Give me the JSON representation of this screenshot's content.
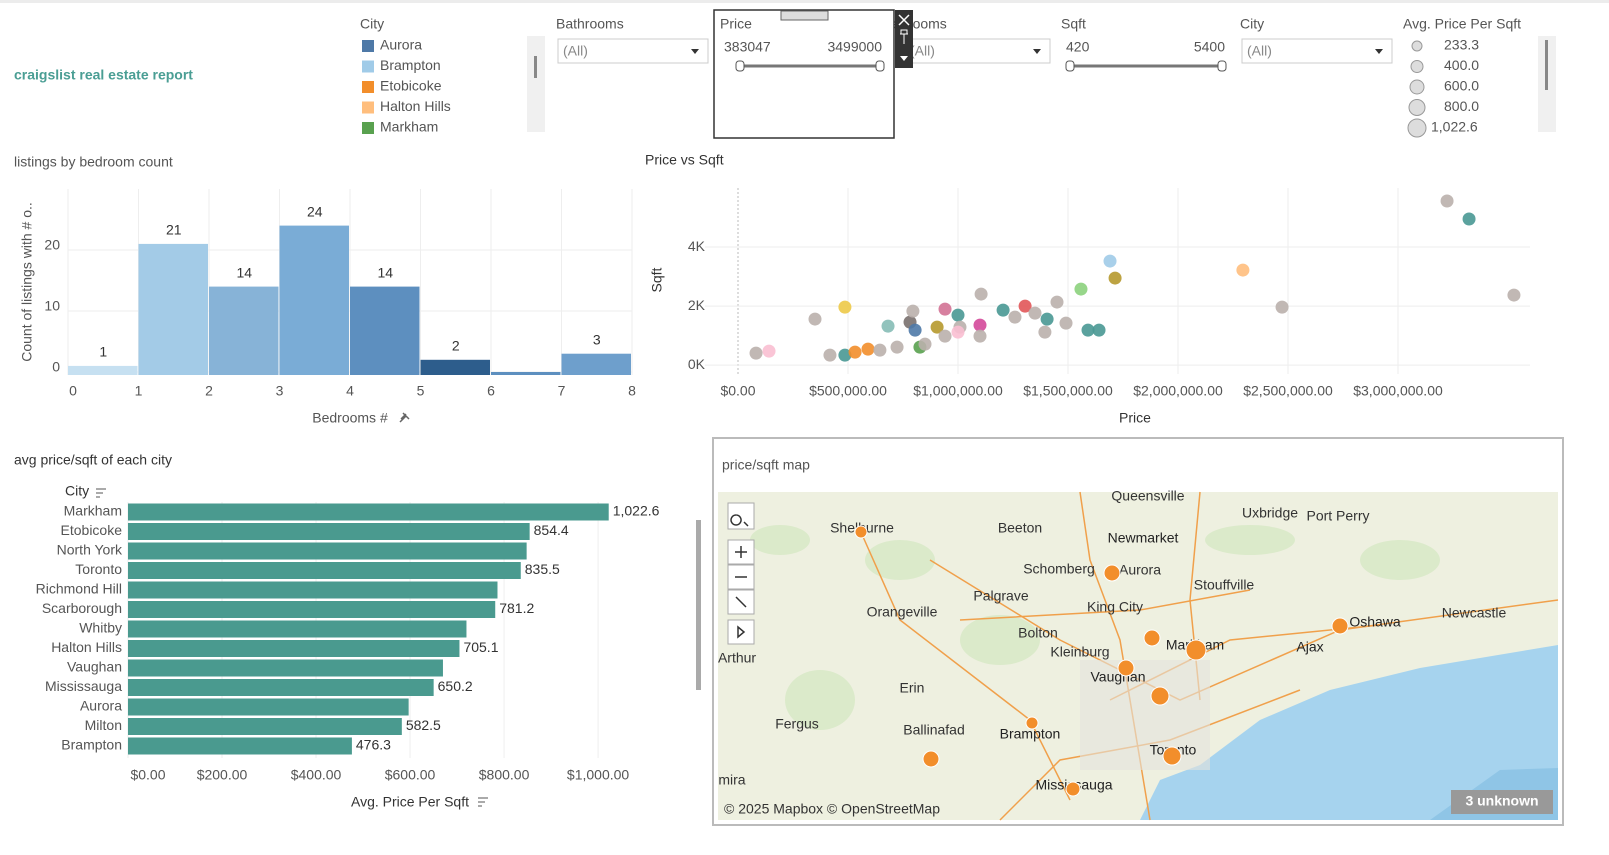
{
  "header": {
    "title": "craigslist real estate report"
  },
  "city_legend": {
    "title": "City",
    "items": [
      {
        "name": "Aurora",
        "color": "#4e79a7"
      },
      {
        "name": "Brampton",
        "color": "#a0cbe8"
      },
      {
        "name": "Etobicoke",
        "color": "#f28e2b"
      },
      {
        "name": "Halton Hills",
        "color": "#ffbe7d"
      },
      {
        "name": "Markham",
        "color": "#59a14f"
      }
    ]
  },
  "filters": {
    "bathrooms": {
      "label": "Bathrooms",
      "value": "(All)"
    },
    "price": {
      "label": "Price",
      "min": 383047,
      "max": 3499000
    },
    "bedrooms": {
      "label": "Bedrooms",
      "value": "(All)"
    },
    "sqft": {
      "label": "Sqft",
      "min": 420,
      "max": 5400
    },
    "city": {
      "label": "City",
      "value": "(All)"
    }
  },
  "size_legend": {
    "title": "Avg. Price Per Sqft",
    "items": [
      "233.3",
      "400.0",
      "600.0",
      "800.0",
      "1,022.6"
    ]
  },
  "chart_data": [
    {
      "type": "histogram",
      "title": "listings by bedroom count",
      "ylabel": "Count of listings with # o..",
      "xlabel": "Bedrooms #",
      "bins": [
        0,
        1,
        2,
        3,
        4,
        5,
        6,
        7,
        8
      ],
      "values": [
        1,
        21,
        14,
        24,
        14,
        2,
        0,
        3
      ],
      "colors": [
        "#c6e0f1",
        "#a3cbe7",
        "#87b3d7",
        "#7aacd6",
        "#5d8fbf",
        "#2d5d8c",
        "#5d8fbf",
        "#6e9fcc"
      ],
      "xlim": [
        0,
        8
      ],
      "ylim": [
        0,
        30
      ],
      "xticks": [
        0,
        1,
        2,
        3,
        4,
        5,
        6,
        7,
        8
      ],
      "yticks": [
        0,
        10,
        20
      ],
      "grid": true
    },
    {
      "type": "scatter",
      "title": "Price vs Sqft",
      "xlabel": "Price",
      "ylabel": "Sqft",
      "x": [
        82000,
        141000,
        350000,
        486000,
        418000,
        486000,
        532000,
        591000,
        645000,
        682000,
        723000,
        782000,
        795000,
        805000,
        827000,
        850000,
        905000,
        941000,
        941000,
        1000000,
        1009000,
        1000000,
        1100000,
        1105000,
        1100000,
        1205000,
        1259000,
        1305000,
        1350000,
        1405000,
        1395000,
        1450000,
        1491000,
        1559000,
        1591000,
        1641000,
        1691000,
        1714000,
        2295000,
        2473000,
        3223000,
        3323000,
        3527000
      ],
      "values": [
        407,
        475,
        1560,
        1966,
        339,
        339,
        441,
        542,
        508,
        1322,
        610,
        1458,
        1830,
        1186,
        610,
        712,
        1288,
        1898,
        983,
        1695,
        1288,
        1119,
        1356,
        2407,
        983,
        1864,
        1627,
        2000,
        1763,
        1559,
        1119,
        2136,
        1424,
        2576,
        1186,
        1186,
        3525,
        2949,
        3220,
        1966,
        5559,
        4949,
        2373
      ],
      "colors": [
        "#bab0ac",
        "#fabfd2",
        "#bab0ac",
        "#edc948",
        "#bab0ac",
        "#499894",
        "#f28e2b",
        "#f28e2b",
        "#bab0ac",
        "#86bcb6",
        "#bab0ac",
        "#79706e",
        "#bab0ac",
        "#4e79a7",
        "#59a14f",
        "#bab0ac",
        "#b6992d",
        "#d37295",
        "#bab0ac",
        "#499894",
        "#bab0ac",
        "#fabfd2",
        "#d4499a",
        "#bab0ac",
        "#bab0ac",
        "#499894",
        "#bab0ac",
        "#e15759",
        "#bab0ac",
        "#499894",
        "#bab0ac",
        "#bab0ac",
        "#bab0ac",
        "#8cd17d",
        "#499894",
        "#499894",
        "#a0cbe8",
        "#b6992d",
        "#ffbe7d",
        "#bab0ac",
        "#bab0ac",
        "#499894",
        "#bab0ac"
      ],
      "xlim": [
        -150000,
        3600000
      ],
      "ylim": [
        -300,
        6000
      ],
      "xticks": [
        {
          "value": 0,
          "label": "$0.00"
        },
        {
          "value": 500000,
          "label": "$500,000.00"
        },
        {
          "value": 1000000,
          "label": "$1,000,000.00"
        },
        {
          "value": 1500000,
          "label": "$1,500,000.00"
        },
        {
          "value": 2000000,
          "label": "$2,000,000.00"
        },
        {
          "value": 2500000,
          "label": "$2,500,000.00"
        },
        {
          "value": 3000000,
          "label": "$3,000,000.00"
        }
      ],
      "yticks": [
        {
          "value": 0,
          "label": "0K"
        },
        {
          "value": 2000,
          "label": "2K"
        },
        {
          "value": 4000,
          "label": "4K"
        }
      ],
      "grid": true
    },
    {
      "type": "bar",
      "orientation": "horizontal",
      "title": "avg price/sqft of each city",
      "category_header": "City",
      "xlabel": "Avg. Price Per Sqft",
      "color": "#4a9a8f",
      "categories": [
        "Markham",
        "Etobicoke",
        "North York",
        "Toronto",
        "Richmond Hill",
        "Scarborough",
        "Whitby",
        "Halton Hills",
        "Vaughan",
        "Mississauga",
        "Aurora",
        "Milton",
        "Brampton"
      ],
      "values": [
        1022.6,
        854.4,
        848,
        835.5,
        786,
        781.2,
        720,
        705.1,
        670,
        650.2,
        597,
        582.5,
        476.3
      ],
      "value_labels": [
        "1,022.6",
        "854.4",
        null,
        "835.5",
        null,
        "781.2",
        null,
        "705.1",
        null,
        "650.2",
        null,
        "582.5",
        "476.3"
      ],
      "xlim": [
        0,
        1170
      ],
      "xticks": [
        {
          "value": 0,
          "label": "$0.00"
        },
        {
          "value": 200,
          "label": "$200.00"
        },
        {
          "value": 400,
          "label": "$400.00"
        },
        {
          "value": 600,
          "label": "$600.00"
        },
        {
          "value": 800,
          "label": "$800.00"
        },
        {
          "value": 1000,
          "label": "$1,000.00"
        }
      ],
      "grid": true
    }
  ],
  "map": {
    "title": "price/sqft map",
    "labels": [
      "Queensville",
      "Uxbridge",
      "Port Perry",
      "Newmarket",
      "Beeton",
      "Shelburne",
      "Schomberg",
      "Aurora",
      "Stouffville",
      "Palgrave",
      "King City",
      "Orangeville",
      "Bolton",
      "Kleinburg",
      "Markham",
      "Oshawa",
      "Ajax",
      "Newcastle",
      "Vaughan",
      "Erin",
      "Fergus",
      "Ballinafad",
      "Brampton",
      "Toronto",
      "Mississauga",
      "Arthur",
      "mira"
    ],
    "attribution": "© 2025 Mapbox © OpenStreetMap",
    "unknown": "3 unknown"
  }
}
